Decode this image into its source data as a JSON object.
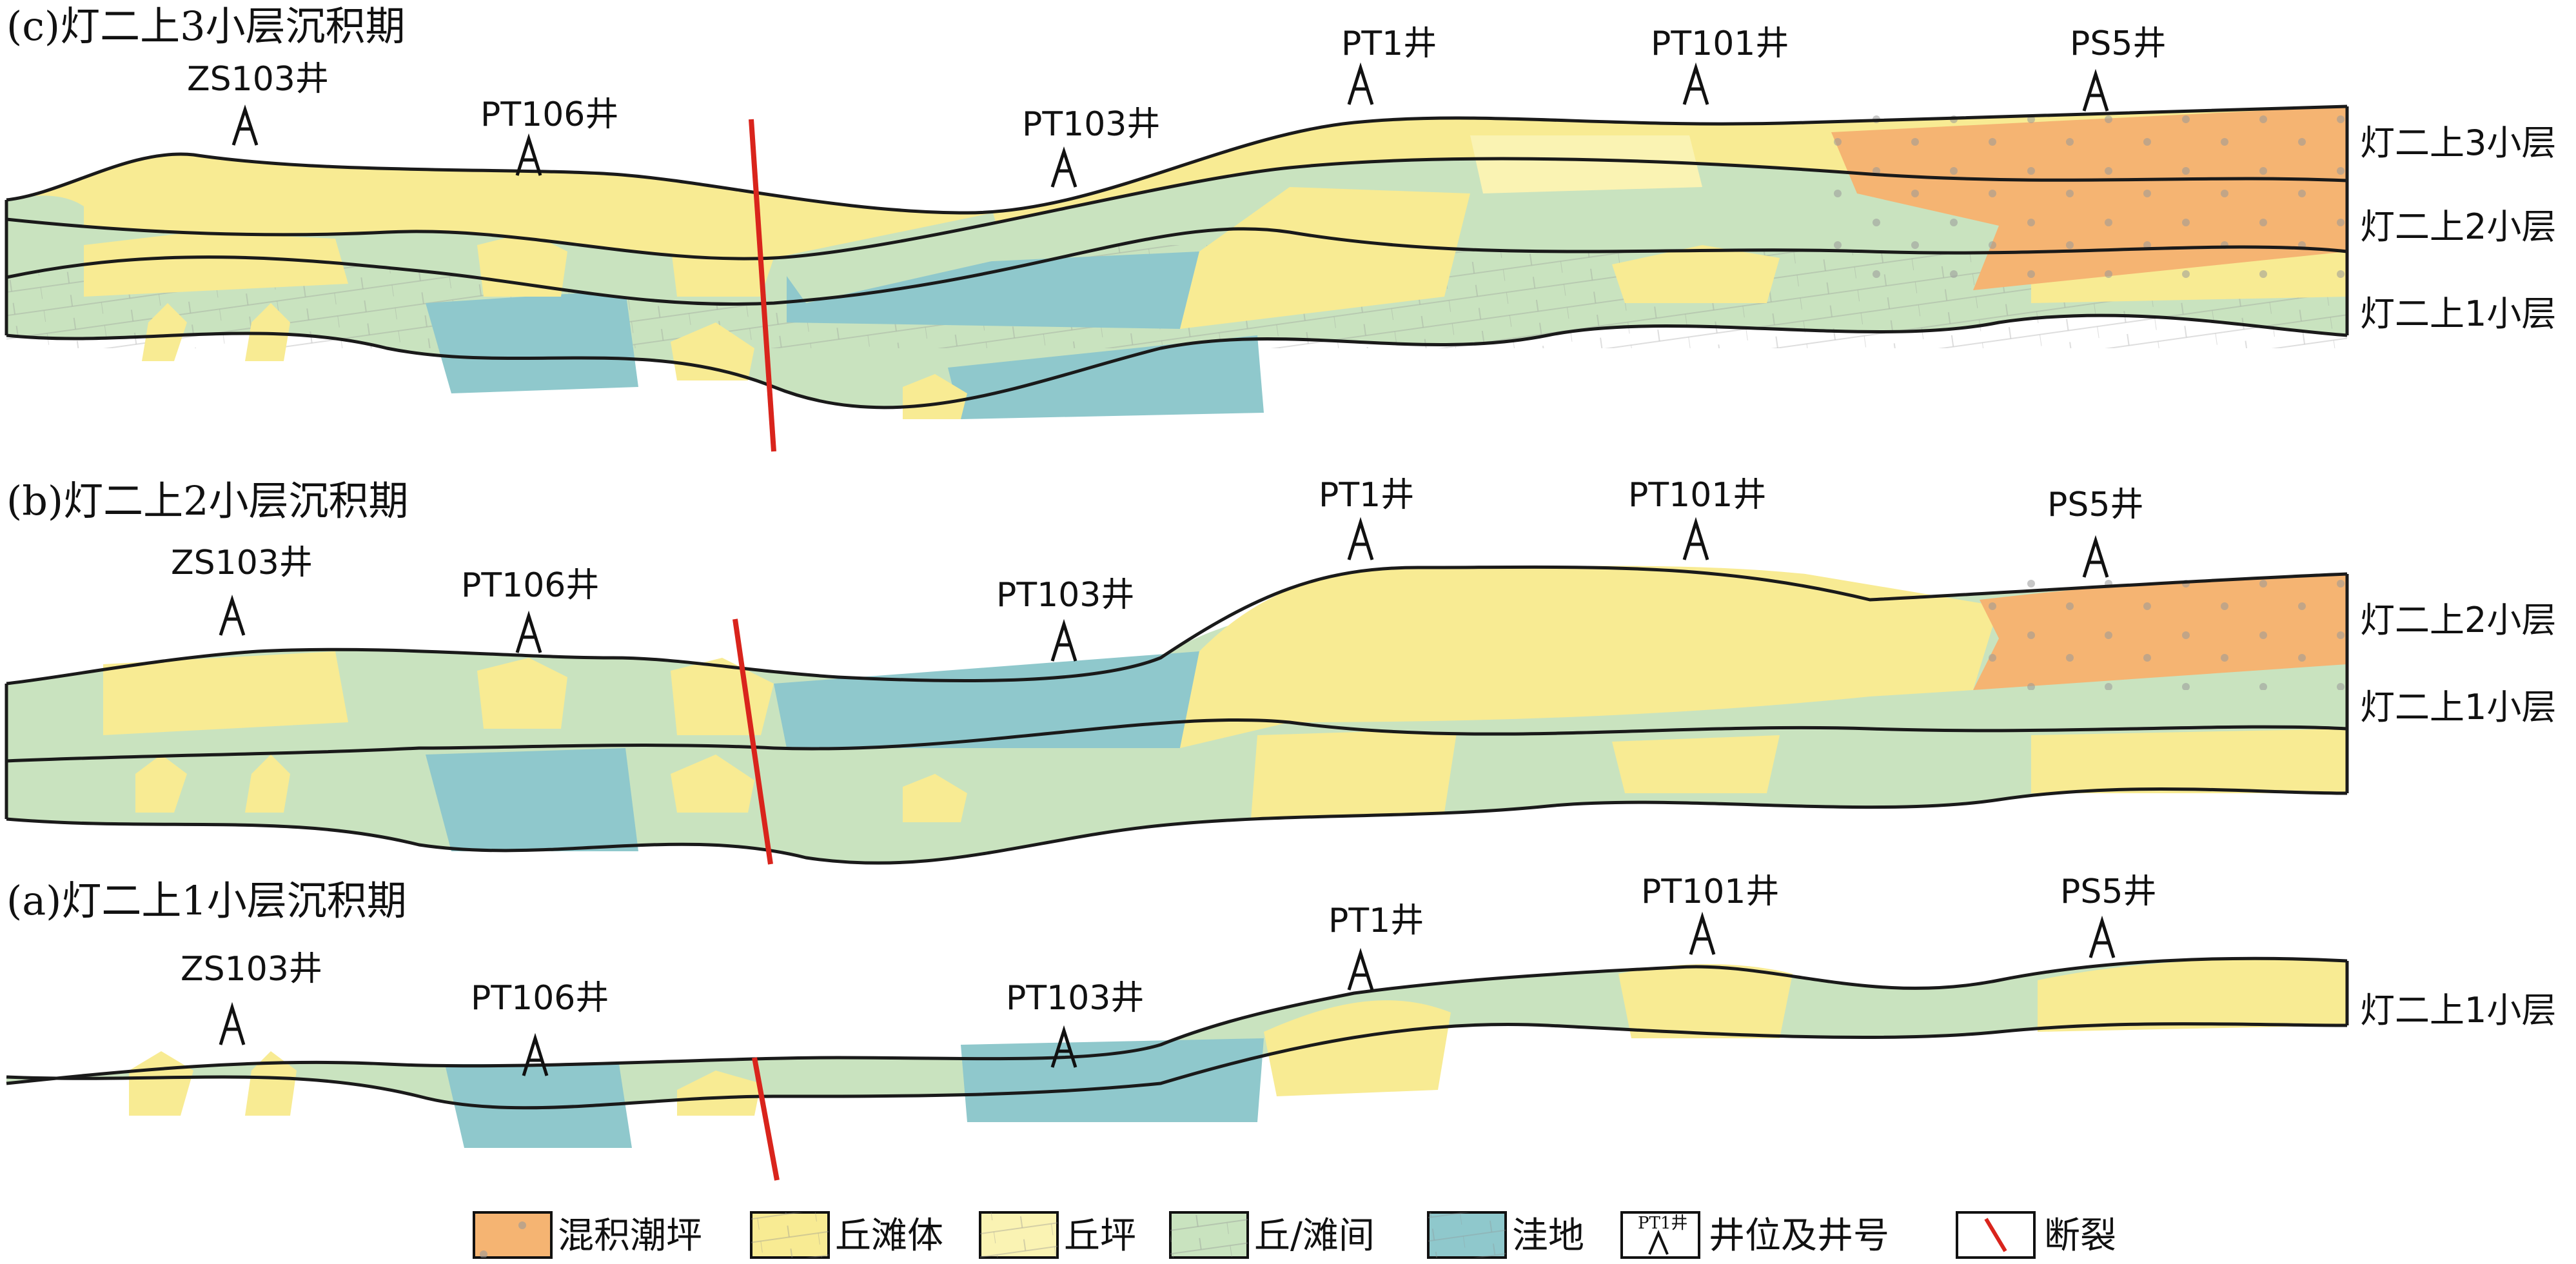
{
  "colors": {
    "mixed_tidal_flat": "#f5b472",
    "mound_shoal": "#f8eb93",
    "mound_flat": "#faf3b3",
    "mound_shoal_interval": "#c9e3bf",
    "depression": "#8fc8cc",
    "fault": "#d9241c",
    "outline": "#1a1a1a"
  },
  "panels": [
    {
      "id": "c",
      "title": "(c)灯二上3小层沉积期",
      "wells": [
        "ZS103井",
        "PT106井",
        "PT103井",
        "PT1井",
        "PT101井",
        "PS5井"
      ],
      "layers": [
        "灯二上3小层",
        "灯二上2小层",
        "灯二上1小层"
      ]
    },
    {
      "id": "b",
      "title": "(b)灯二上2小层沉积期",
      "wells": [
        "ZS103井",
        "PT106井",
        "PT103井",
        "PT1井",
        "PT101井",
        "PS5井"
      ],
      "layers": [
        "灯二上2小层",
        "灯二上1小层"
      ]
    },
    {
      "id": "a",
      "title": "(a)灯二上1小层沉积期",
      "wells": [
        "ZS103井",
        "PT106井",
        "PT103井",
        "PT1井",
        "PT101井",
        "PS5井"
      ],
      "layers": [
        "灯二上1小层"
      ]
    }
  ],
  "legend": {
    "mixed_tidal_flat": "混积潮坪",
    "mound_shoal": "丘滩体",
    "mound_flat": "丘坪",
    "mound_shoal_interval": "丘/滩间",
    "depression": "洼地",
    "well_sample": "PT1井",
    "well": "井位及井号",
    "fault": "断裂"
  }
}
